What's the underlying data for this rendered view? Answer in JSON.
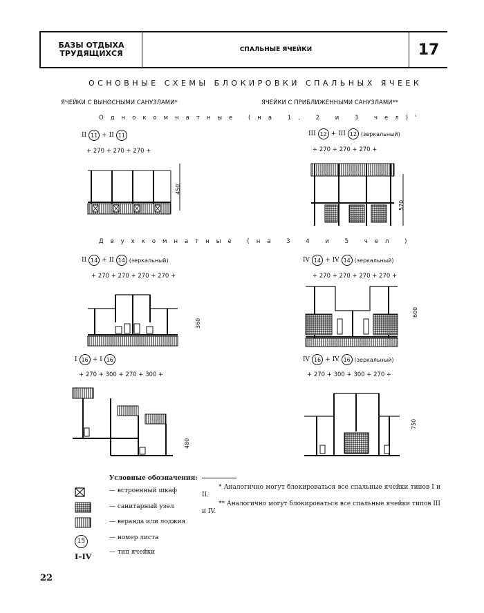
{
  "header": {
    "section_line1": "БАЗЫ ОТДЫХА",
    "section_line2": "ТРУДЯЩИХСЯ",
    "topic": "СПАЛЬНЫЕ ЯЧЕЙКИ",
    "sheet": "17"
  },
  "title": "ОСНОВНЫЕ СХЕМЫ БЛОКИРОВКИ СПАЛЬНЫХ ЯЧЕЕК",
  "columns": {
    "left": "ЯЧЕЙКИ С ВЫНОСНЫМИ САНУЗЛАМИ*",
    "right": "ЯЧЕЙКИ С ПРИБЛИЖЕННЫМИ САНУЗЛАМИ**"
  },
  "groups": {
    "one_room": "Однокомнатные (на 1, 2 и 3 чел)'",
    "two_room": "Двухкомнатные (на 3 4 и 5 чел )"
  },
  "schemes": [
    {
      "type1": "II",
      "sheet1": "11",
      "sep": "+",
      "type2": "II",
      "sheet2": "11",
      "suffix": "",
      "dims": "+ 270 + 270 + 270 +",
      "height": "450"
    },
    {
      "type1": "III",
      "sheet1": "12",
      "sep": "+",
      "type2": "III",
      "sheet2": "12",
      "suffix": "(зеркальный)",
      "dims": "+ 270 + 270 + 270 +",
      "height": "570"
    },
    {
      "type1": "II",
      "sheet1": "14",
      "sep": "+",
      "type2": "II",
      "sheet2": "14",
      "suffix": "(зеркальный)",
      "dims": "+ 270 + 270 + 270 + 270 +",
      "height": "360"
    },
    {
      "type1": "IV",
      "sheet1": "14",
      "sep": "+",
      "type2": "IV",
      "sheet2": "14",
      "suffix": "(зеркальный)",
      "dims": "+ 270 + 270 + 270 + 270 +",
      "height": "600"
    },
    {
      "type1": "I",
      "sheet1": "16",
      "sep": "+",
      "type2": "I",
      "sheet2": "16",
      "suffix": "",
      "dims": "+ 270 + 300 + 270 + 300 +",
      "height": "480"
    },
    {
      "type1": "IV",
      "sheet1": "16",
      "sep": "+",
      "type2": "IV",
      "sheet2": "16",
      "suffix": "(зеркальный)",
      "dims": "+ 270 + 300 + 300 + 270 +",
      "height": "750"
    }
  ],
  "legend": {
    "title": "Условные обозначения:",
    "items": [
      {
        "icon": "built-in-wardrobe-icon",
        "label": "— встроенный шкаф"
      },
      {
        "icon": "sanitary-unit-icon",
        "label": "— санитарный узел"
      },
      {
        "icon": "veranda-icon",
        "label": "— веранда или лоджия"
      },
      {
        "icon": "sheet-number-icon",
        "symbol": "15",
        "label": "— номер листа"
      },
      {
        "icon": "cell-type-icon",
        "symbol": "I–IV",
        "label": "— тип ячейки"
      }
    ]
  },
  "notes": [
    "* Аналогично могут блокироваться все спальные ячейки типов I и II.",
    "** Аналогично могут блокироваться все спальные ячейки типов III и IV."
  ],
  "page_number": "22"
}
